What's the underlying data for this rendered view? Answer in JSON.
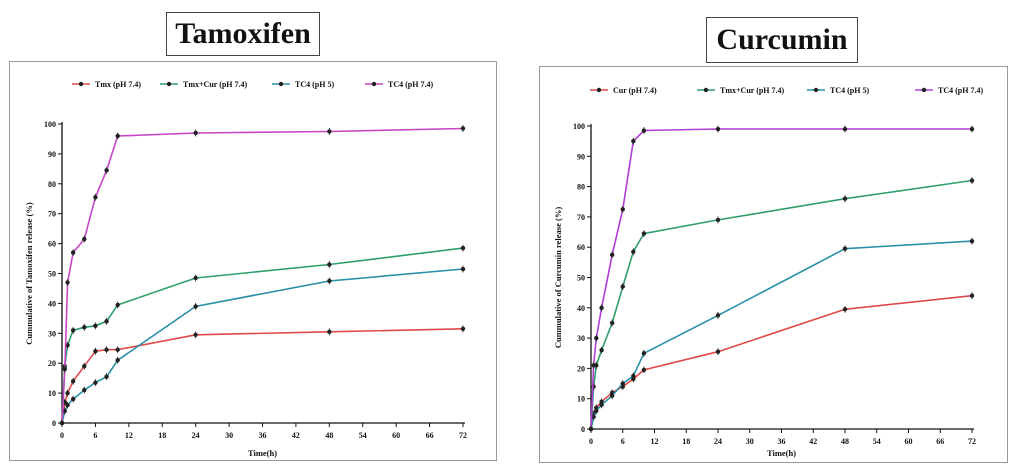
{
  "chart_data": [
    {
      "type": "line",
      "title": "Tamoxifen",
      "xlabel": "Time(h)",
      "ylabel": "Cummulative of Tamoxifen release (%)",
      "x_ticks": [
        0,
        6,
        12,
        18,
        24,
        30,
        36,
        42,
        48,
        54,
        60,
        66,
        72
      ],
      "y_ticks": [
        0,
        10,
        20,
        30,
        40,
        50,
        60,
        70,
        80,
        90,
        100
      ],
      "xlim": [
        0,
        72
      ],
      "ylim": [
        0,
        100
      ],
      "legend_position": "top",
      "series": [
        {
          "name": "Tmx (pH 7.4)",
          "color": "#e0484a",
          "x": [
            0,
            0.5,
            1,
            2,
            4,
            6,
            8,
            10,
            24,
            48,
            72
          ],
          "y": [
            0,
            7,
            10,
            14,
            19,
            24,
            24.5,
            24.5,
            29.5,
            30.5,
            31.5
          ]
        },
        {
          "name": "Tmx+Cur (pH 7.4)",
          "color": "#2e9e6b",
          "x": [
            0,
            0.5,
            1,
            2,
            4,
            6,
            8,
            10,
            24,
            48,
            72
          ],
          "y": [
            0,
            19,
            26,
            31,
            32,
            32.5,
            34,
            39.5,
            48.5,
            53,
            58.5
          ]
        },
        {
          "name": "TC4 (pH 5)",
          "color": "#2a8fa8",
          "x": [
            0,
            0.5,
            1,
            2,
            4,
            6,
            8,
            10,
            24,
            48,
            72
          ],
          "y": [
            0,
            4,
            6,
            8,
            11,
            13.5,
            15.5,
            21,
            39,
            47.5,
            51.5
          ]
        },
        {
          "name": "TC4 (pH 7.4)",
          "color": "#c646c6",
          "x": [
            0,
            0.5,
            1,
            2,
            4,
            6,
            8,
            10,
            24,
            48,
            72
          ],
          "y": [
            0,
            18,
            47,
            57,
            61.5,
            75.5,
            84.5,
            96,
            97,
            97.5,
            98.5
          ]
        }
      ]
    },
    {
      "type": "line",
      "title": "Curcumin",
      "xlabel": "Time(h)",
      "ylabel": "Cummulative of Curcumin release (%)",
      "x_ticks": [
        0,
        6,
        12,
        18,
        24,
        30,
        36,
        42,
        48,
        54,
        60,
        66,
        72
      ],
      "y_ticks": [
        0,
        10,
        20,
        30,
        40,
        50,
        60,
        70,
        80,
        90,
        100
      ],
      "xlim": [
        0,
        72
      ],
      "ylim": [
        0,
        100
      ],
      "legend_position": "top",
      "series": [
        {
          "name": "Cur (pH 7.4)",
          "color": "#e0484a",
          "x": [
            0,
            0.5,
            1,
            2,
            4,
            6,
            8,
            10,
            24,
            48,
            72
          ],
          "y": [
            0,
            5,
            7,
            9,
            12,
            14,
            16.5,
            19.5,
            25.5,
            39.5,
            44
          ]
        },
        {
          "name": "Tmx+Cur (pH 7.4)",
          "color": "#2e9e6b",
          "x": [
            0,
            0.5,
            1,
            2,
            4,
            6,
            8,
            10,
            24,
            48,
            72
          ],
          "y": [
            0,
            14,
            21,
            26,
            35,
            47,
            58.5,
            64.5,
            69,
            76,
            82
          ]
        },
        {
          "name": "TC4 (pH 5)",
          "color": "#2a8fa8",
          "x": [
            0,
            0.5,
            1,
            2,
            4,
            6,
            8,
            10,
            24,
            48,
            72
          ],
          "y": [
            0,
            4,
            6,
            8,
            11,
            15,
            17.5,
            25,
            37.5,
            59.5,
            62
          ]
        },
        {
          "name": "TC4 (pH 7.4)",
          "color": "#b03ed8",
          "x": [
            0,
            0.5,
            1,
            2,
            4,
            6,
            8,
            10,
            24,
            48,
            72
          ],
          "y": [
            0,
            21,
            30,
            40,
            57.5,
            72.5,
            95,
            98.5,
            99,
            99,
            99
          ]
        }
      ]
    }
  ]
}
